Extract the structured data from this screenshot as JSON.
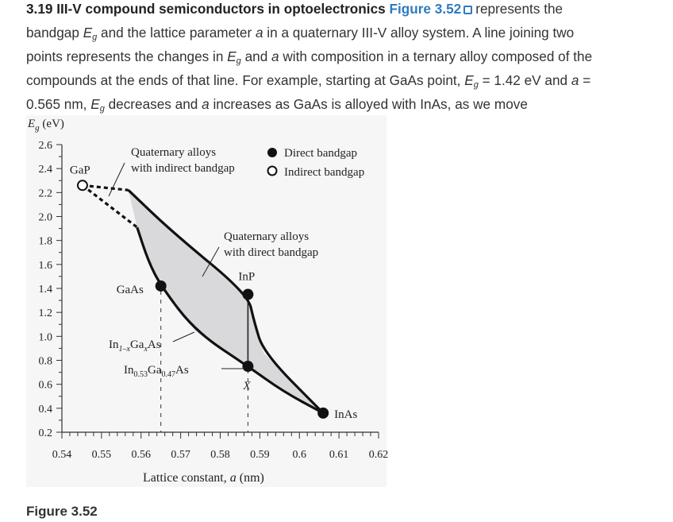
{
  "paragraph": {
    "lines": [
      [
        {
          "t": "3.19 III-V compound semiconductors in optoelectronics ",
          "s": "b"
        },
        {
          "t": "Figure 3.52",
          "s": "link"
        },
        {
          "t": "",
          "s": "ext"
        },
        {
          "t": "represents the",
          "s": ""
        }
      ],
      [
        {
          "t": "bandgap ",
          "s": ""
        },
        {
          "t": "E",
          "s": "i"
        },
        {
          "t": "g",
          "s": "sub"
        },
        {
          "t": " and the lattice parameter ",
          "s": ""
        },
        {
          "t": "a",
          "s": "i"
        },
        {
          "t": " in a quaternary III-V alloy system. A line joining two",
          "s": ""
        }
      ],
      [
        {
          "t": "points represents the changes in ",
          "s": ""
        },
        {
          "t": "E",
          "s": "i"
        },
        {
          "t": "g",
          "s": "sub"
        },
        {
          "t": " and ",
          "s": ""
        },
        {
          "t": "a",
          "s": "i"
        },
        {
          "t": " with composition in a ternary alloy composed of the",
          "s": ""
        }
      ],
      [
        {
          "t": "compounds at the ends of that line. For example, starting at GaAs point, ",
          "s": ""
        },
        {
          "t": "E",
          "s": "i"
        },
        {
          "t": "g",
          "s": "sub"
        },
        {
          "t": " = 1.42 eV and ",
          "s": ""
        },
        {
          "t": "a",
          "s": "i"
        },
        {
          "t": " =",
          "s": ""
        }
      ],
      [
        {
          "t": "0.565 nm, ",
          "s": ""
        },
        {
          "t": "E",
          "s": "i"
        },
        {
          "t": "g",
          "s": "sub"
        },
        {
          "t": " decreases and ",
          "s": ""
        },
        {
          "t": "a",
          "s": "i"
        },
        {
          "t": " increases as GaAs is alloyed with InAs, as we move",
          "s": ""
        }
      ]
    ]
  },
  "caption": "Figure 3.52",
  "chart_data": {
    "type": "scatter",
    "ylabel_main": "E",
    "ylabel_sub": "g",
    "ylabel_unit": " (eV)",
    "xlabel": "Lattice constant, ",
    "xlabel_var": "a",
    "xlabel_unit": " (nm)",
    "xlim": [
      0.54,
      0.62
    ],
    "ylim": [
      0.2,
      2.6
    ],
    "xticks": [
      "0.54",
      "0.55",
      "0.56",
      "0.57",
      "0.58",
      "0.59",
      "0.6",
      "0.61",
      "0.62"
    ],
    "yticks": [
      "2.6",
      "2.4",
      "2.2",
      "2.0",
      "1.8",
      "1.6",
      "1.4",
      "1.2",
      "1.0",
      "0.8",
      "0.6",
      "0.4",
      "0.2"
    ],
    "legend": {
      "direct": "Direct bandgap",
      "indirect": "Indirect bandgap",
      "placement": "top-right"
    },
    "points": [
      {
        "label": "GaP",
        "a": 0.5452,
        "eg": 2.26,
        "type": "indirect"
      },
      {
        "label": "GaAs",
        "a": 0.565,
        "eg": 1.42,
        "type": "direct"
      },
      {
        "label": "InP",
        "a": 0.587,
        "eg": 1.35,
        "type": "direct"
      },
      {
        "label": "X",
        "a": 0.587,
        "eg": 0.75,
        "type": "direct"
      },
      {
        "label": "InAs",
        "a": 0.606,
        "eg": 0.36,
        "type": "direct"
      }
    ],
    "region_label_indirect": [
      "Quaternary alloys",
      "with indirect bandgap"
    ],
    "region_label_direct": [
      "Quaternary alloys",
      "with direct bandgap"
    ],
    "ternary_label": {
      "base": "In",
      "sub1": "1–x",
      "mid": "Ga",
      "sub2": "x",
      "end": "As"
    },
    "lattice_matched_label": {
      "base": "In",
      "sub1": "0.53",
      "mid": "Ga",
      "sub2": "0.47",
      "end": "As"
    },
    "boundary_upper": [
      [
        0.5568,
        2.22
      ],
      [
        0.5679,
        1.87
      ],
      [
        0.587,
        1.35
      ],
      [
        0.5885,
        1.13
      ],
      [
        0.591,
        0.86
      ],
      [
        0.606,
        0.36
      ]
    ],
    "boundary_lower": [
      [
        0.559,
        1.91
      ],
      [
        0.5618,
        1.63
      ],
      [
        0.565,
        1.42
      ],
      [
        0.5738,
        1.04
      ],
      [
        0.587,
        0.75
      ],
      [
        0.5959,
        0.54
      ],
      [
        0.606,
        0.36
      ]
    ],
    "dashed_indirect": [
      [
        [
          0.5452,
          2.26
        ],
        [
          0.5568,
          2.22
        ]
      ],
      [
        [
          0.5452,
          2.26
        ],
        [
          0.559,
          1.91
        ]
      ]
    ],
    "vertical_lines": [
      {
        "a": 0.565,
        "style": "dashed"
      },
      {
        "a": 0.587,
        "style": "dashed"
      }
    ],
    "colors": {
      "region_fill": "#d9d9db",
      "line": "#111111",
      "background": "#f6f6f6",
      "link": "#2e7bbf"
    }
  }
}
